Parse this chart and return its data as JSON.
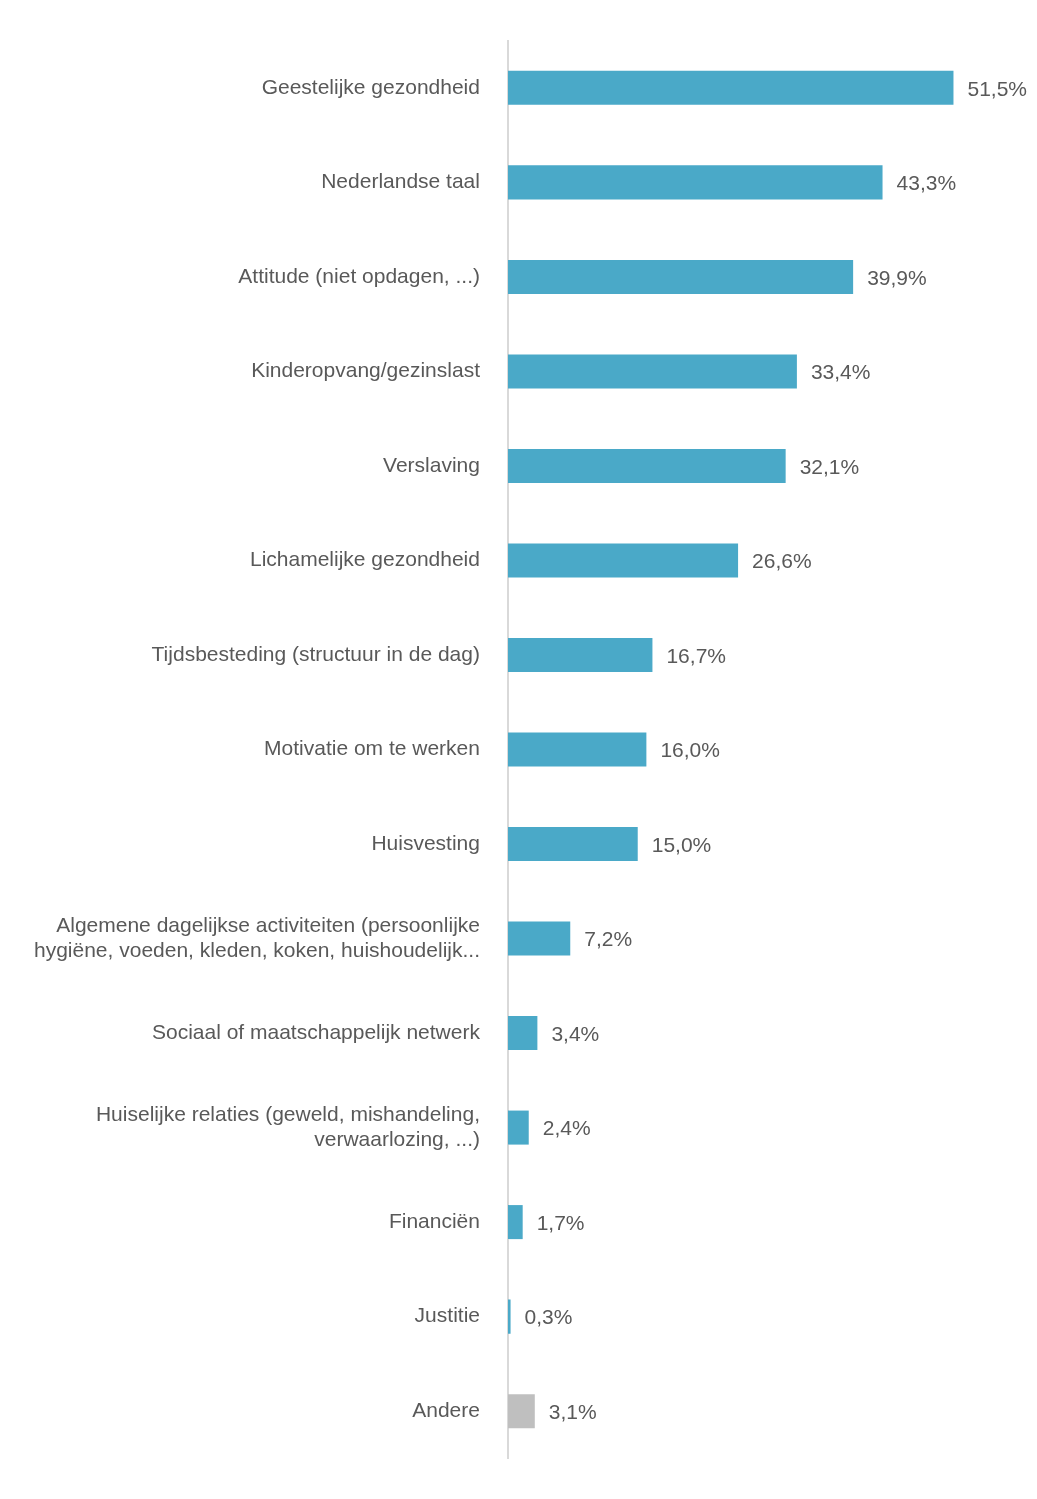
{
  "chart_data": {
    "type": "bar",
    "orientation": "horizontal",
    "tick_labels": "y",
    "grid": false,
    "legend": false,
    "categories": [
      "Geestelijke gezondheid",
      "Nederlandse taal",
      "Attitude (niet opdagen, ...)",
      "Kinderopvang/gezinslast",
      "Verslaving",
      "Lichamelijke gezondheid",
      "Tijdsbesteding (structuur in de dag)",
      "Motivatie om te werken",
      "Huisvesting",
      "Algemene dagelijkse activiteiten (persoonlijke hygiëne, voeden, kleden, koken, huishoudelijk...",
      "Sociaal of maatschappelijk netwerk",
      "Huiselijke relaties (geweld, mishandeling, verwaarlozing, ...)",
      "Financiën",
      "Justitie",
      "Andere"
    ],
    "values": [
      51.5,
      43.3,
      39.9,
      33.4,
      32.1,
      26.6,
      16.7,
      16.0,
      15.0,
      7.2,
      3.4,
      2.4,
      1.7,
      0.3,
      3.1
    ],
    "value_labels": [
      "51,5%",
      "43,3%",
      "39,9%",
      "33,4%",
      "32,1%",
      "26,6%",
      "16,7%",
      "16,0%",
      "15,0%",
      "7,2%",
      "3,4%",
      "2,4%",
      "1,7%",
      "0,3%",
      "3,1%"
    ],
    "colors": [
      "#4aa9c8",
      "#4aa9c8",
      "#4aa9c8",
      "#4aa9c8",
      "#4aa9c8",
      "#4aa9c8",
      "#4aa9c8",
      "#4aa9c8",
      "#4aa9c8",
      "#4aa9c8",
      "#4aa9c8",
      "#4aa9c8",
      "#4aa9c8",
      "#4aa9c8",
      "#bfbfbf"
    ]
  }
}
